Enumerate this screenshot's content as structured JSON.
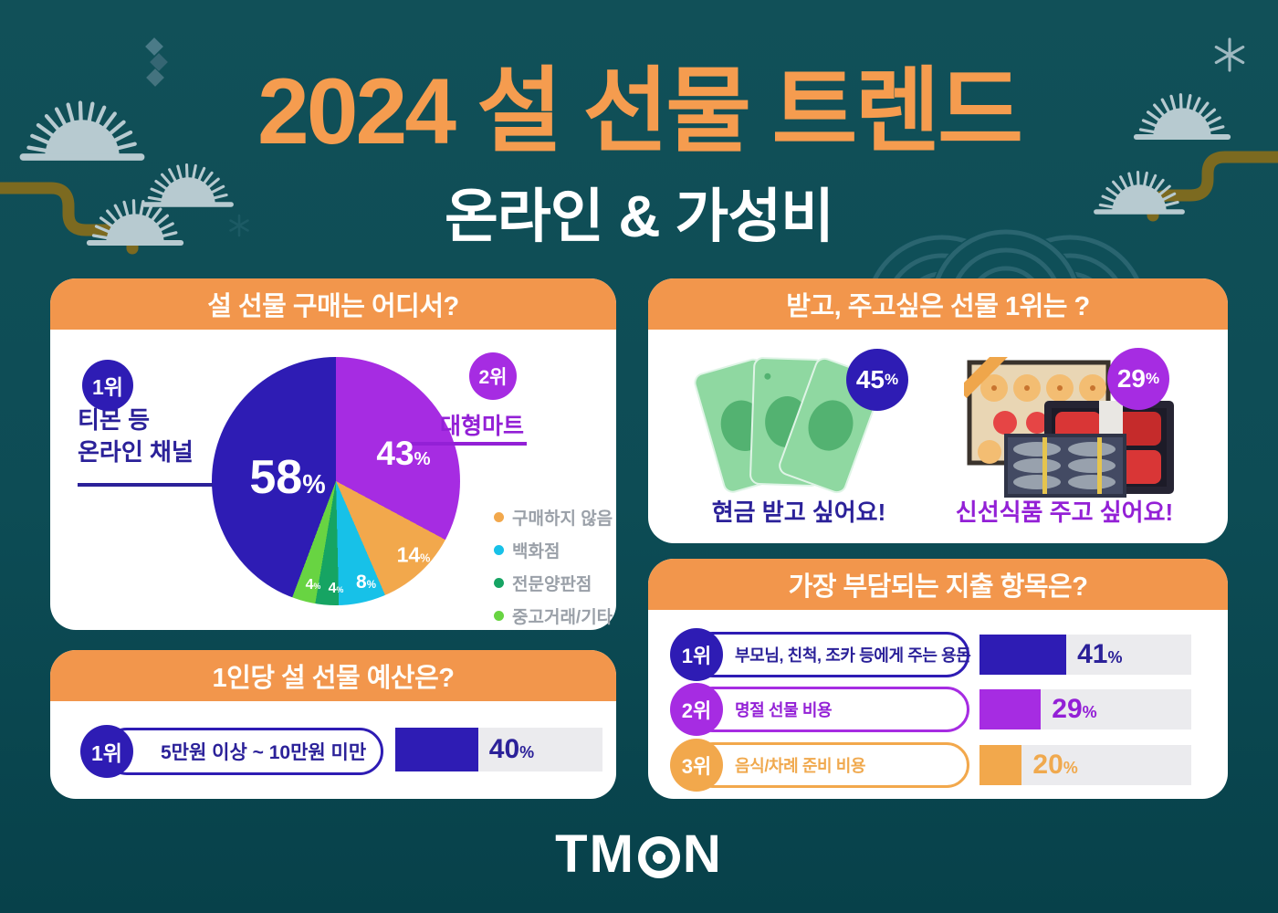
{
  "header": {
    "title": "2024 설 선물 트렌드",
    "subtitle": "온라인 & 가성비"
  },
  "chart_data": [
    {
      "type": "pie",
      "title": "설 선물 구매는 어디서?",
      "unit": "%",
      "legend_position": "right",
      "slices": [
        {
          "label": "대형마트",
          "value": 43,
          "color": "#a62ce2",
          "rank": "2위"
        },
        {
          "label": "구매하지 않음",
          "value": 14,
          "color": "#f2a84c"
        },
        {
          "label": "백화점",
          "value": 8,
          "color": "#17c1e8"
        },
        {
          "label": "전문양판점",
          "value": 4,
          "color": "#16a463"
        },
        {
          "label": "중고거래/기타",
          "value": 4,
          "color": "#68d442"
        },
        {
          "label": "티몬 등 온라인 채널",
          "label_lines": [
            "티몬 등",
            "온라인 채널"
          ],
          "value": 58,
          "color": "#2e1cb4",
          "rank": "1위"
        }
      ]
    },
    {
      "type": "stat",
      "title": "받고, 주고싶은 선물 1위는 ?",
      "unit": "%",
      "items": [
        {
          "value": 45,
          "caption": "현금 받고 싶어요!",
          "icon": "cash-icon",
          "color": "#2e1cb4"
        },
        {
          "value": 29,
          "caption": "신선식품 주고 싶어요!",
          "icon": "gift-set-icon",
          "color": "#a62ce2"
        }
      ]
    },
    {
      "type": "bar",
      "title": "1인당 설 선물 예산은?",
      "unit": "%",
      "rows": [
        {
          "rank": "1위",
          "label": "5만원 이상 ~ 10만원 미만",
          "value": 40,
          "color": "#2e1cb4"
        }
      ]
    },
    {
      "type": "bar",
      "title": "가장 부담되는 지출 항목은?",
      "unit": "%",
      "rows": [
        {
          "rank": "1위",
          "label": "부모님, 친척, 조카 등에게 주는 용돈",
          "value": 41,
          "color": "#2e1cb4"
        },
        {
          "rank": "2위",
          "label": "명절 선물 비용",
          "value": 29,
          "color": "#a62ce2"
        },
        {
          "rank": "3위",
          "label": "음식/차례 준비 비용",
          "value": 20,
          "color": "#f2a84c"
        }
      ]
    }
  ],
  "brand": {
    "name": "TMON",
    "display_left": "TM",
    "display_right": "N"
  },
  "colors": {
    "bg_top": "#115058",
    "bg_bottom": "#07414a",
    "title_orange": "#f59c4f",
    "header_orange": "#f2964c",
    "card": "#ffffff",
    "blue": "#2e1cb4",
    "navy_text": "#2b2199",
    "purple": "#a62ce2",
    "purple_text": "#9320d6",
    "orange": "#f2a84c",
    "orange_text": "#f0a94e",
    "cyan": "#17c1e8",
    "teal_green": "#16a463",
    "light_green": "#68d442",
    "track": "#ebebee",
    "legend_text": "#9aa0a8",
    "pine_needle": "#b7cad0",
    "branch": "#7c6a20",
    "wave": "#2a6570"
  }
}
